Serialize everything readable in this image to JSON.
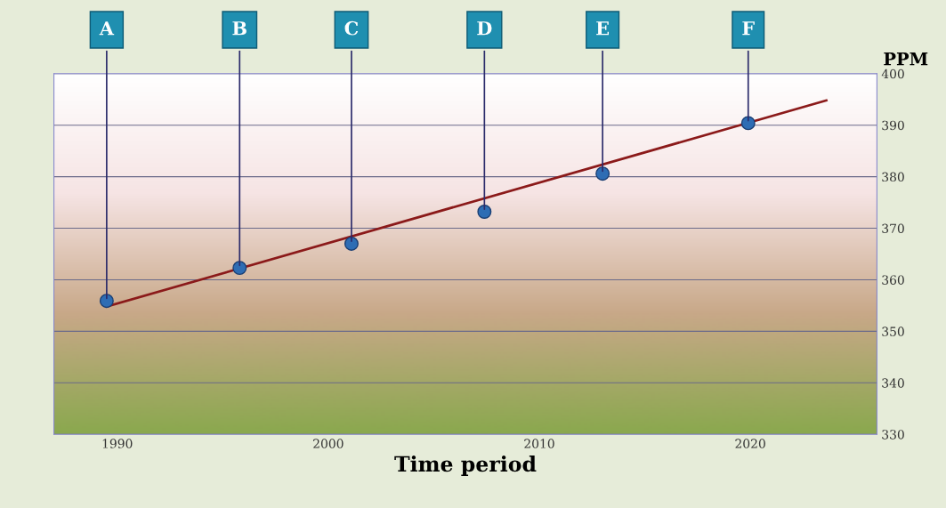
{
  "chart_data": {
    "type": "scatter",
    "xlabel": "Time period",
    "ylabel": "PPM",
    "x": [
      1989.5,
      1995.8,
      2001.1,
      2007.4,
      2013.0,
      2019.9
    ],
    "series": [
      {
        "color": "#2e6db4",
        "marker": "circle",
        "values": [
          355.9,
          362.3,
          367.0,
          373.2,
          380.6,
          390.4
        ]
      },
      {
        "type": "line",
        "color": "#8b1a1a",
        "x": [
          1989.5,
          2023.6
        ],
        "values": [
          354.8,
          394.8
        ]
      }
    ],
    "xlim": [
      1987,
      2026
    ],
    "xticks": [
      1990,
      2000,
      2010,
      2020
    ],
    "ylim": [
      330,
      400
    ],
    "yticks": [
      330,
      340,
      350,
      360,
      370,
      380,
      390,
      400
    ],
    "grid": "y",
    "annotations": [
      {
        "text": "A",
        "x": 1989.5,
        "y": 355.9
      },
      {
        "text": "B",
        "x": 1995.8,
        "y": 362.3
      },
      {
        "text": "C",
        "x": 2001.1,
        "y": 367.0
      },
      {
        "text": "D",
        "x": 2007.4,
        "y": 373.2
      },
      {
        "text": "E",
        "x": 2013.0,
        "y": 380.6
      },
      {
        "text": "F",
        "x": 2019.9,
        "y": 390.4
      }
    ]
  }
}
